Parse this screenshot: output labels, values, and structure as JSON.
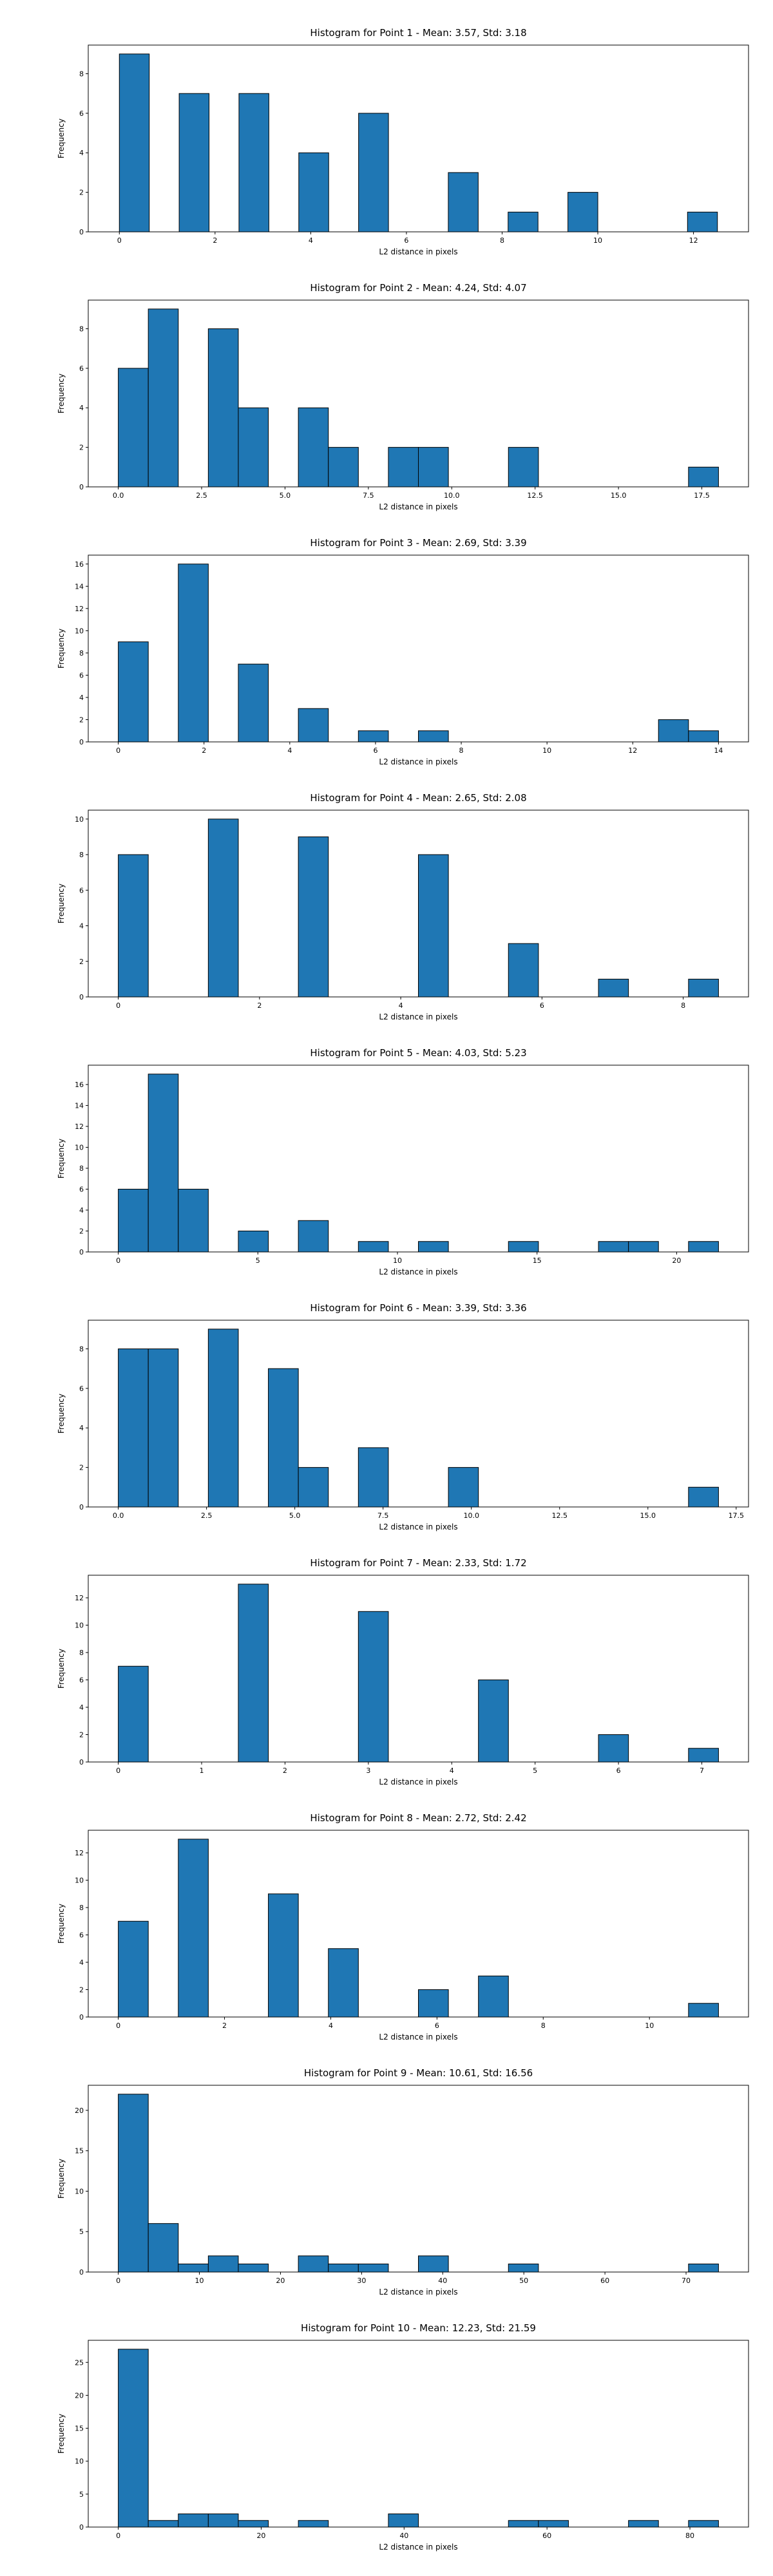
{
  "chart_data": [
    {
      "type": "bar",
      "title": "Histogram for Point 1 - Mean: 3.57, Std: 3.18",
      "xlabel": "L2 distance in pixels",
      "ylabel": "Frequency",
      "xlim": [
        -0.65,
        13.15
      ],
      "ylim": [
        0,
        9.45
      ],
      "xticks": [
        0,
        2,
        4,
        6,
        8,
        10,
        12
      ],
      "xtick_labels": [
        "0",
        "2",
        "4",
        "6",
        "8",
        "10",
        "12"
      ],
      "yticks": [
        0,
        2,
        4,
        6,
        8
      ],
      "ytick_labels": [
        "0",
        "2",
        "4",
        "6",
        "8"
      ],
      "bin_edges": [
        0.0,
        0.625,
        1.25,
        1.875,
        2.5,
        3.125,
        3.75,
        4.375,
        5.0,
        5.625,
        6.25,
        6.875,
        7.5,
        8.125,
        8.75,
        9.375,
        10.0,
        10.625,
        11.25,
        11.875,
        12.5
      ],
      "values": [
        9,
        0,
        7,
        0,
        7,
        0,
        4,
        0,
        6,
        0,
        0,
        3,
        0,
        1,
        0,
        2,
        0,
        0,
        0,
        1
      ]
    },
    {
      "type": "bar",
      "title": "Histogram for Point 2 - Mean: 4.24, Std: 4.07",
      "xlabel": "L2 distance in pixels",
      "ylabel": "Frequency",
      "xlim": [
        -0.9,
        18.9
      ],
      "ylim": [
        0,
        9.45
      ],
      "xticks": [
        0,
        2.5,
        5,
        7.5,
        10,
        12.5,
        15,
        17.5
      ],
      "xtick_labels": [
        "0.0",
        "2.5",
        "5.0",
        "7.5",
        "10.0",
        "12.5",
        "15.0",
        "17.5"
      ],
      "yticks": [
        0,
        2,
        4,
        6,
        8
      ],
      "ytick_labels": [
        "0",
        "2",
        "4",
        "6",
        "8"
      ],
      "bin_edges": [
        0.0,
        0.9,
        1.8,
        2.7,
        3.6,
        4.5,
        5.4,
        6.3,
        7.2,
        8.1,
        9.0,
        9.9,
        10.8,
        11.7,
        12.6,
        13.5,
        14.4,
        15.3,
        16.2,
        17.1,
        18.0
      ],
      "values": [
        6,
        9,
        0,
        8,
        4,
        0,
        4,
        2,
        0,
        2,
        2,
        0,
        0,
        2,
        0,
        0,
        0,
        0,
        0,
        1
      ]
    },
    {
      "type": "bar",
      "title": "Histogram for Point 3 - Mean: 2.69, Std: 3.39",
      "xlabel": "L2 distance in pixels",
      "ylabel": "Frequency",
      "xlim": [
        -0.7,
        14.7
      ],
      "ylim": [
        0,
        16.8
      ],
      "xticks": [
        0,
        2,
        4,
        6,
        8,
        10,
        12,
        14
      ],
      "xtick_labels": [
        "0",
        "2",
        "4",
        "6",
        "8",
        "10",
        "12",
        "14"
      ],
      "yticks": [
        0,
        2,
        4,
        6,
        8,
        10,
        12,
        14,
        16
      ],
      "ytick_labels": [
        "0",
        "2",
        "4",
        "6",
        "8",
        "10",
        "12",
        "14",
        "16"
      ],
      "bin_edges": [
        0.0,
        0.7,
        1.4,
        2.1,
        2.8,
        3.5,
        4.2,
        4.9,
        5.6,
        6.3,
        7.0,
        7.7,
        8.4,
        9.1,
        9.8,
        10.5,
        11.2,
        11.9,
        12.6,
        13.3,
        14.0
      ],
      "values": [
        9,
        0,
        16,
        0,
        7,
        0,
        3,
        0,
        1,
        0,
        1,
        0,
        0,
        0,
        0,
        0,
        0,
        0,
        2,
        1
      ]
    },
    {
      "type": "bar",
      "title": "Histogram for Point 4 - Mean: 2.65, Std: 2.08",
      "xlabel": "L2 distance in pixels",
      "ylabel": "Frequency",
      "xlim": [
        -0.425,
        8.925
      ],
      "ylim": [
        0,
        10.5
      ],
      "xticks": [
        0,
        2,
        4,
        6,
        8
      ],
      "xtick_labels": [
        "0",
        "2",
        "4",
        "6",
        "8"
      ],
      "yticks": [
        0,
        2,
        4,
        6,
        8,
        10
      ],
      "ytick_labels": [
        "0",
        "2",
        "4",
        "6",
        "8",
        "10"
      ],
      "bin_edges": [
        0.0,
        0.425,
        0.85,
        1.275,
        1.7,
        2.125,
        2.55,
        2.975,
        3.4,
        3.825,
        4.25,
        4.675,
        5.1,
        5.525,
        5.95,
        6.375,
        6.8,
        7.225,
        7.65,
        8.075,
        8.5
      ],
      "values": [
        8,
        0,
        0,
        10,
        0,
        0,
        9,
        0,
        0,
        0,
        8,
        0,
        0,
        3,
        0,
        0,
        1,
        0,
        0,
        1
      ]
    },
    {
      "type": "bar",
      "title": "Histogram for Point 5 - Mean: 4.03, Std: 5.23",
      "xlabel": "L2 distance in pixels",
      "ylabel": "Frequency",
      "xlim": [
        -1.075,
        22.575
      ],
      "ylim": [
        0,
        17.85
      ],
      "xticks": [
        0,
        5,
        10,
        15,
        20
      ],
      "xtick_labels": [
        "0",
        "5",
        "10",
        "15",
        "20"
      ],
      "yticks": [
        0,
        2,
        4,
        6,
        8,
        10,
        12,
        14,
        16
      ],
      "ytick_labels": [
        "0",
        "2",
        "4",
        "6",
        "8",
        "10",
        "12",
        "14",
        "16"
      ],
      "bin_edges": [
        0.0,
        1.075,
        2.15,
        3.225,
        4.3,
        5.375,
        6.45,
        7.525,
        8.6,
        9.675,
        10.75,
        11.825,
        12.9,
        13.975,
        15.05,
        16.125,
        17.2,
        18.275,
        19.35,
        20.425,
        21.5
      ],
      "values": [
        6,
        17,
        6,
        0,
        2,
        0,
        3,
        0,
        1,
        0,
        1,
        0,
        0,
        1,
        0,
        0,
        1,
        1,
        0,
        1
      ]
    },
    {
      "type": "bar",
      "title": "Histogram for Point 6 - Mean: 3.39, Std: 3.36",
      "xlabel": "L2 distance in pixels",
      "ylabel": "Frequency",
      "xlim": [
        -0.85,
        17.85
      ],
      "ylim": [
        0,
        9.45
      ],
      "xticks": [
        0,
        2.5,
        5,
        7.5,
        10,
        12.5,
        15,
        17.5
      ],
      "xtick_labels": [
        "0.0",
        "2.5",
        "5.0",
        "7.5",
        "10.0",
        "12.5",
        "15.0",
        "17.5"
      ],
      "yticks": [
        0,
        2,
        4,
        6,
        8
      ],
      "ytick_labels": [
        "0",
        "2",
        "4",
        "6",
        "8"
      ],
      "bin_edges": [
        0.0,
        0.85,
        1.7,
        2.55,
        3.4,
        4.25,
        5.1,
        5.95,
        6.8,
        7.65,
        8.5,
        9.35,
        10.2,
        11.05,
        11.9,
        12.75,
        13.6,
        14.45,
        15.3,
        16.15,
        17.0
      ],
      "values": [
        8,
        8,
        0,
        9,
        0,
        7,
        2,
        0,
        3,
        0,
        0,
        2,
        0,
        0,
        0,
        0,
        0,
        0,
        0,
        1
      ]
    },
    {
      "type": "bar",
      "title": "Histogram for Point 7 - Mean: 2.33, Std: 1.72",
      "xlabel": "L2 distance in pixels",
      "ylabel": "Frequency",
      "xlim": [
        -0.36,
        7.56
      ],
      "ylim": [
        0,
        13.65
      ],
      "xticks": [
        0,
        1,
        2,
        3,
        4,
        5,
        6,
        7
      ],
      "xtick_labels": [
        "0",
        "1",
        "2",
        "3",
        "4",
        "5",
        "6",
        "7"
      ],
      "yticks": [
        0,
        2,
        4,
        6,
        8,
        10,
        12
      ],
      "ytick_labels": [
        "0",
        "2",
        "4",
        "6",
        "8",
        "10",
        "12"
      ],
      "bin_edges": [
        0.0,
        0.36,
        0.72,
        1.08,
        1.44,
        1.8,
        2.16,
        2.52,
        2.88,
        3.24,
        3.6,
        3.96,
        4.32,
        4.68,
        5.04,
        5.4,
        5.76,
        6.12,
        6.48,
        6.84,
        7.2
      ],
      "values": [
        7,
        0,
        0,
        0,
        13,
        0,
        0,
        0,
        11,
        0,
        0,
        0,
        6,
        0,
        0,
        0,
        2,
        0,
        0,
        1
      ]
    },
    {
      "type": "bar",
      "title": "Histogram for Point 8 - Mean: 2.72, Std: 2.42",
      "xlabel": "L2 distance in pixels",
      "ylabel": "Frequency",
      "xlim": [
        -0.565,
        11.865
      ],
      "ylim": [
        0,
        13.65
      ],
      "xticks": [
        0,
        2,
        4,
        6,
        8,
        10
      ],
      "xtick_labels": [
        "0",
        "2",
        "4",
        "6",
        "8",
        "10"
      ],
      "yticks": [
        0,
        2,
        4,
        6,
        8,
        10,
        12
      ],
      "ytick_labels": [
        "0",
        "2",
        "4",
        "6",
        "8",
        "10",
        "12"
      ],
      "bin_edges": [
        0.0,
        0.565,
        1.13,
        1.695,
        2.26,
        2.825,
        3.39,
        3.955,
        4.52,
        5.085,
        5.65,
        6.215,
        6.78,
        7.345,
        7.91,
        8.475,
        9.04,
        9.605,
        10.17,
        10.735,
        11.3
      ],
      "values": [
        7,
        0,
        13,
        0,
        0,
        9,
        0,
        5,
        0,
        0,
        2,
        0,
        3,
        0,
        0,
        0,
        0,
        0,
        0,
        1
      ]
    },
    {
      "type": "bar",
      "title": "Histogram for Point 9 - Mean: 10.61, Std: 16.56",
      "xlabel": "L2 distance in pixels",
      "ylabel": "Frequency",
      "xlim": [
        -3.7,
        77.7
      ],
      "ylim": [
        0,
        23.1
      ],
      "xticks": [
        0,
        10,
        20,
        30,
        40,
        50,
        60,
        70
      ],
      "xtick_labels": [
        "0",
        "10",
        "20",
        "30",
        "40",
        "50",
        "60",
        "70"
      ],
      "yticks": [
        0,
        5,
        10,
        15,
        20
      ],
      "ytick_labels": [
        "0",
        "5",
        "10",
        "15",
        "20"
      ],
      "bin_edges": [
        0.0,
        3.7,
        7.4,
        11.1,
        14.8,
        18.5,
        22.2,
        25.9,
        29.6,
        33.3,
        37.0,
        40.7,
        44.4,
        48.1,
        51.8,
        55.5,
        59.2,
        62.9,
        66.6,
        70.3,
        74.0
      ],
      "values": [
        22,
        6,
        1,
        2,
        1,
        0,
        2,
        1,
        1,
        0,
        2,
        0,
        0,
        1,
        0,
        0,
        0,
        0,
        0,
        1
      ]
    },
    {
      "type": "bar",
      "title": "Histogram for Point 10 - Mean: 12.23, Std: 21.59",
      "xlabel": "L2 distance in pixels",
      "ylabel": "Frequency",
      "xlim": [
        -4.2,
        88.2
      ],
      "ylim": [
        0,
        28.35
      ],
      "xticks": [
        0,
        20,
        40,
        60,
        80
      ],
      "xtick_labels": [
        "0",
        "20",
        "40",
        "60",
        "80"
      ],
      "yticks": [
        0,
        5,
        10,
        15,
        20,
        25
      ],
      "ytick_labels": [
        "0",
        "5",
        "10",
        "15",
        "20",
        "25"
      ],
      "bin_edges": [
        0.0,
        4.2,
        8.4,
        12.6,
        16.8,
        21.0,
        25.2,
        29.4,
        33.6,
        37.8,
        42.0,
        46.2,
        50.4,
        54.6,
        58.8,
        63.0,
        67.2,
        71.4,
        75.6,
        79.8,
        84.0
      ],
      "values": [
        27,
        1,
        2,
        2,
        1,
        0,
        1,
        0,
        0,
        2,
        0,
        0,
        0,
        1,
        1,
        0,
        0,
        1,
        0,
        1
      ]
    }
  ]
}
